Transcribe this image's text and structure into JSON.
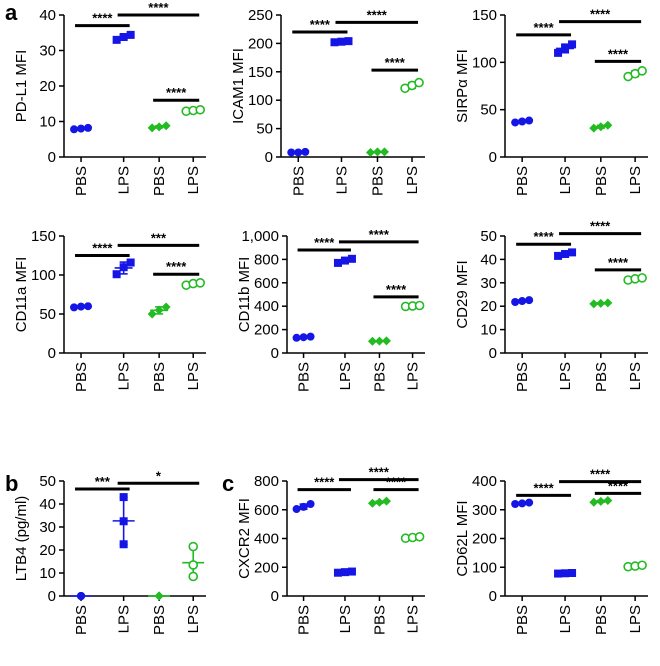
{
  "panel_labels": [
    "a",
    "b",
    "c"
  ],
  "colors": {
    "blue": "#1515e6",
    "green": "#22bb22",
    "axis": "#000000"
  },
  "chart_data": [
    {
      "id": "pdl1",
      "type": "scatter",
      "panel": "a",
      "ylabel": "PD-L1 MFI",
      "categories": [
        "PBS",
        "LPS",
        "PBS",
        "LPS"
      ],
      "ylim": [
        0,
        40
      ],
      "yticks": [
        0,
        10,
        20,
        30,
        40
      ],
      "ytick_labels": [
        "0",
        "10",
        "20",
        "30",
        "40"
      ],
      "groups": [
        {
          "color": "blue",
          "marker": "circle",
          "values": [
            7.8,
            8.0,
            8.2
          ]
        },
        {
          "color": "blue",
          "marker": "square",
          "values": [
            33.0,
            33.8,
            34.4
          ]
        },
        {
          "color": "green",
          "marker": "diamond",
          "values": [
            8.2,
            8.5,
            8.8
          ]
        },
        {
          "color": "green",
          "marker": "open-circle",
          "values": [
            12.9,
            13.1,
            13.3
          ]
        }
      ],
      "significance": [
        {
          "from": 0,
          "to": 1,
          "label": "****",
          "y": 37
        },
        {
          "from": 1,
          "to": 3,
          "label": "****",
          "y": 40
        },
        {
          "from": 2,
          "to": 3,
          "label": "****",
          "y": 16
        }
      ]
    },
    {
      "id": "icam1",
      "type": "scatter",
      "panel": "a",
      "ylabel": "ICAM1 MFI",
      "categories": [
        "PBS",
        "LPS",
        "PBS",
        "LPS"
      ],
      "ylim": [
        0,
        250
      ],
      "yticks": [
        0,
        50,
        100,
        150,
        200,
        250
      ],
      "ytick_labels": [
        "0",
        "50",
        "100",
        "150",
        "200",
        "250"
      ],
      "groups": [
        {
          "color": "blue",
          "marker": "circle",
          "values": [
            8,
            8,
            9
          ]
        },
        {
          "color": "blue",
          "marker": "square",
          "values": [
            202,
            203,
            204
          ]
        },
        {
          "color": "green",
          "marker": "diamond",
          "values": [
            8,
            9,
            9
          ]
        },
        {
          "color": "green",
          "marker": "open-circle",
          "values": [
            121,
            126,
            131
          ]
        }
      ],
      "significance": [
        {
          "from": 0,
          "to": 1,
          "label": "****",
          "y": 220
        },
        {
          "from": 1,
          "to": 3,
          "label": "****",
          "y": 237
        },
        {
          "from": 2,
          "to": 3,
          "label": "****",
          "y": 153
        }
      ]
    },
    {
      "id": "sirpa",
      "type": "scatter",
      "panel": "a",
      "ylabel": "SIRPα MFI",
      "categories": [
        "PBS",
        "LPS",
        "PBS",
        "LPS"
      ],
      "ylim": [
        0,
        150
      ],
      "yticks": [
        0,
        50,
        100,
        150
      ],
      "ytick_labels": [
        "0",
        "50",
        "100",
        "150"
      ],
      "groups": [
        {
          "color": "blue",
          "marker": "circle",
          "values": [
            36.5,
            37.5,
            38.5
          ]
        },
        {
          "color": "blue",
          "marker": "square",
          "values": [
            110,
            115,
            119
          ]
        },
        {
          "color": "green",
          "marker": "diamond",
          "values": [
            30.5,
            32.0,
            33.5
          ]
        },
        {
          "color": "green",
          "marker": "open-circle",
          "values": [
            85,
            88,
            91
          ]
        }
      ],
      "significance": [
        {
          "from": 0,
          "to": 1,
          "label": "****",
          "y": 129
        },
        {
          "from": 1,
          "to": 3,
          "label": "****",
          "y": 143
        },
        {
          "from": 2,
          "to": 3,
          "label": "****",
          "y": 101
        }
      ]
    },
    {
      "id": "cd11a",
      "type": "scatter",
      "panel": "a",
      "ylabel": "CD11a MFI",
      "categories": [
        "PBS",
        "LPS",
        "PBS",
        "LPS"
      ],
      "ylim": [
        0,
        150
      ],
      "yticks": [
        0,
        50,
        100,
        150
      ],
      "ytick_labels": [
        "0",
        "50",
        "100",
        "150"
      ],
      "groups": [
        {
          "color": "blue",
          "marker": "circle",
          "values": [
            58.5,
            59.5,
            60.0
          ]
        },
        {
          "color": "blue",
          "marker": "square",
          "values": [
            101,
            110,
            116
          ]
        },
        {
          "color": "green",
          "marker": "diamond",
          "values": [
            50,
            55,
            59
          ]
        },
        {
          "color": "green",
          "marker": "open-circle",
          "values": [
            87,
            89,
            90
          ]
        }
      ],
      "significance": [
        {
          "from": 0,
          "to": 1,
          "label": "****",
          "y": 125
        },
        {
          "from": 1,
          "to": 3,
          "label": "***",
          "y": 138
        },
        {
          "from": 2,
          "to": 3,
          "label": "****",
          "y": 101
        }
      ]
    },
    {
      "id": "cd11b",
      "type": "scatter",
      "panel": "a",
      "ylabel": "CD11b MFI",
      "categories": [
        "PBS",
        "LPS",
        "PBS",
        "LPS"
      ],
      "ylim": [
        0,
        1000
      ],
      "yticks": [
        0,
        200,
        400,
        600,
        800,
        1000
      ],
      "ytick_labels": [
        "0",
        "200",
        "400",
        "600",
        "800",
        "1,000"
      ],
      "groups": [
        {
          "color": "blue",
          "marker": "circle",
          "values": [
            130,
            135,
            140
          ]
        },
        {
          "color": "blue",
          "marker": "square",
          "values": [
            770,
            790,
            805
          ]
        },
        {
          "color": "green",
          "marker": "diamond",
          "values": [
            100,
            102,
            104
          ]
        },
        {
          "color": "green",
          "marker": "open-circle",
          "values": [
            398,
            402,
            406
          ]
        }
      ],
      "significance": [
        {
          "from": 0,
          "to": 1,
          "label": "****",
          "y": 880
        },
        {
          "from": 1,
          "to": 3,
          "label": "****",
          "y": 950
        },
        {
          "from": 2,
          "to": 3,
          "label": "****",
          "y": 480
        }
      ]
    },
    {
      "id": "cd29",
      "type": "scatter",
      "panel": "a",
      "ylabel": "CD29 MFI",
      "categories": [
        "PBS",
        "LPS",
        "PBS",
        "LPS"
      ],
      "ylim": [
        0,
        50
      ],
      "yticks": [
        0,
        10,
        20,
        30,
        40,
        50
      ],
      "ytick_labels": [
        "0",
        "10",
        "20",
        "30",
        "40",
        "50"
      ],
      "groups": [
        {
          "color": "blue",
          "marker": "circle",
          "values": [
            21.8,
            22.2,
            22.6
          ]
        },
        {
          "color": "blue",
          "marker": "square",
          "values": [
            41.5,
            42.3,
            43.0
          ]
        },
        {
          "color": "green",
          "marker": "diamond",
          "values": [
            21.0,
            21.2,
            21.4
          ]
        },
        {
          "color": "green",
          "marker": "open-circle",
          "values": [
            31.2,
            31.7,
            32.1
          ]
        }
      ],
      "significance": [
        {
          "from": 0,
          "to": 1,
          "label": "****",
          "y": 46.5
        },
        {
          "from": 1,
          "to": 3,
          "label": "****",
          "y": 51
        },
        {
          "from": 2,
          "to": 3,
          "label": "****",
          "y": 35.5
        }
      ]
    },
    {
      "id": "ltb4",
      "type": "scatter",
      "panel": "b",
      "ylabel": "LTB4 (pg/ml)",
      "categories": [
        "PBS",
        "LPS",
        "PBS",
        "LPS"
      ],
      "ylim": [
        0,
        50
      ],
      "yticks": [
        0,
        10,
        20,
        30,
        40,
        50
      ],
      "ytick_labels": [
        "0",
        "10",
        "20",
        "30",
        "40",
        "50"
      ],
      "groups": [
        {
          "color": "blue",
          "marker": "circle",
          "values": [
            0,
            0,
            0
          ]
        },
        {
          "color": "blue",
          "marker": "square",
          "values": [
            22.5,
            32.5,
            43.0
          ]
        },
        {
          "color": "green",
          "marker": "diamond",
          "values": [
            0,
            0,
            0
          ]
        },
        {
          "color": "green",
          "marker": "open-circle",
          "values": [
            8.5,
            13.5,
            21.5
          ]
        }
      ],
      "significance": [
        {
          "from": 0,
          "to": 1,
          "label": "***",
          "y": 46.5
        },
        {
          "from": 1,
          "to": 3,
          "label": "*",
          "y": 49
        }
      ]
    },
    {
      "id": "cxcr2",
      "type": "scatter",
      "panel": "c",
      "ylabel": "CXCR2 MFI",
      "categories": [
        "PBS",
        "LPS",
        "PBS",
        "LPS"
      ],
      "ylim": [
        0,
        800
      ],
      "yticks": [
        0,
        200,
        400,
        600,
        800
      ],
      "ytick_labels": [
        "0",
        "200",
        "400",
        "600",
        "800"
      ],
      "groups": [
        {
          "color": "blue",
          "marker": "circle",
          "values": [
            605,
            620,
            640
          ]
        },
        {
          "color": "blue",
          "marker": "square",
          "values": [
            162,
            166,
            170
          ]
        },
        {
          "color": "green",
          "marker": "diamond",
          "values": [
            645,
            652,
            660
          ]
        },
        {
          "color": "green",
          "marker": "open-circle",
          "values": [
            402,
            407,
            412
          ]
        }
      ],
      "significance": [
        {
          "from": 0,
          "to": 1,
          "label": "****",
          "y": 740
        },
        {
          "from": 1,
          "to": 3,
          "label": "****",
          "y": 810
        },
        {
          "from": 2,
          "to": 3,
          "label": "****",
          "y": 740
        }
      ]
    },
    {
      "id": "cd62l",
      "type": "scatter",
      "panel": "c",
      "ylabel": "CD62L MFI",
      "categories": [
        "PBS",
        "LPS",
        "PBS",
        "LPS"
      ],
      "ylim": [
        0,
        400
      ],
      "yticks": [
        0,
        100,
        200,
        300,
        400
      ],
      "ytick_labels": [
        "0",
        "100",
        "200",
        "300",
        "400"
      ],
      "groups": [
        {
          "color": "blue",
          "marker": "circle",
          "values": [
            320,
            322,
            325
          ]
        },
        {
          "color": "blue",
          "marker": "square",
          "values": [
            78,
            79,
            80
          ]
        },
        {
          "color": "green",
          "marker": "diamond",
          "values": [
            326,
            329,
            332
          ]
        },
        {
          "color": "green",
          "marker": "open-circle",
          "values": [
            102,
            104,
            107
          ]
        }
      ],
      "significance": [
        {
          "from": 0,
          "to": 1,
          "label": "****",
          "y": 350
        },
        {
          "from": 1,
          "to": 3,
          "label": "****",
          "y": 398
        },
        {
          "from": 2,
          "to": 3,
          "label": "****",
          "y": 357
        }
      ]
    }
  ]
}
